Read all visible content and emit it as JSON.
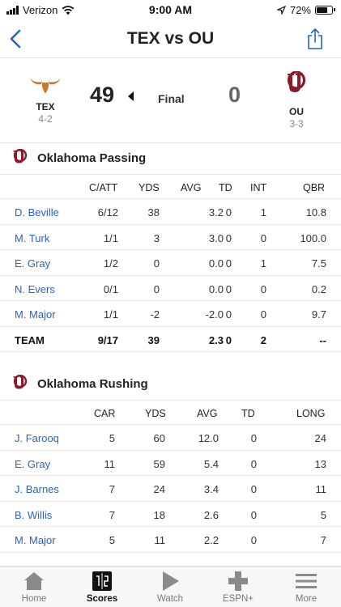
{
  "status_bar": {
    "carrier": "Verizon",
    "time": "9:00 AM",
    "battery": "72%",
    "battery_level": 0.72
  },
  "nav": {
    "title": "TEX vs OU",
    "back_icon": "chevron-left-icon",
    "share_icon": "share-icon"
  },
  "scoreboard": {
    "home": {
      "abbr": "TEX",
      "record": "4-2",
      "score": "49",
      "color": "#c9772e"
    },
    "away": {
      "abbr": "OU",
      "record": "3-3",
      "score": "0",
      "color": "#8b1b2b"
    },
    "status": "Final"
  },
  "passing": {
    "title": "Oklahoma Passing",
    "columns": [
      "C/ATT",
      "YDS",
      "AVG",
      "TD",
      "INT",
      "QBR"
    ],
    "rows": [
      {
        "name": "D. Beville",
        "cells": [
          "6/12",
          "38",
          "3.2",
          "0",
          "1",
          "10.8"
        ]
      },
      {
        "name": "M. Turk",
        "cells": [
          "1/1",
          "3",
          "3.0",
          "0",
          "0",
          "100.0"
        ]
      },
      {
        "name": "E. Gray",
        "cells": [
          "1/2",
          "0",
          "0.0",
          "0",
          "1",
          "7.5"
        ]
      },
      {
        "name": "N. Evers",
        "cells": [
          "0/1",
          "0",
          "0.0",
          "0",
          "0",
          "0.2"
        ]
      },
      {
        "name": "M. Major",
        "cells": [
          "1/1",
          "-2",
          "-2.0",
          "0",
          "0",
          "9.7"
        ]
      }
    ],
    "team": {
      "name": "TEAM",
      "cells": [
        "9/17",
        "39",
        "2.3",
        "0",
        "2",
        "--"
      ]
    }
  },
  "rushing": {
    "title": "Oklahoma Rushing",
    "columns": [
      "CAR",
      "YDS",
      "AVG",
      "TD",
      "LONG"
    ],
    "rows": [
      {
        "name": "J. Farooq",
        "cells": [
          "5",
          "60",
          "12.0",
          "0",
          "24"
        ]
      },
      {
        "name": "E. Gray",
        "cells": [
          "11",
          "59",
          "5.4",
          "0",
          "13"
        ]
      },
      {
        "name": "J. Barnes",
        "cells": [
          "7",
          "24",
          "3.4",
          "0",
          "11"
        ]
      },
      {
        "name": "B. Willis",
        "cells": [
          "7",
          "18",
          "2.6",
          "0",
          "5"
        ]
      },
      {
        "name": "M. Major",
        "cells": [
          "5",
          "11",
          "2.2",
          "0",
          "7"
        ]
      }
    ]
  },
  "tabs": [
    {
      "label": "Home",
      "icon": "home-icon",
      "active": false
    },
    {
      "label": "Scores",
      "icon": "scoreboard-icon",
      "active": true
    },
    {
      "label": "Watch",
      "icon": "play-icon",
      "active": false
    },
    {
      "label": "ESPN+",
      "icon": "plus-icon",
      "active": false
    },
    {
      "label": "More",
      "icon": "menu-icon",
      "active": false
    }
  ]
}
